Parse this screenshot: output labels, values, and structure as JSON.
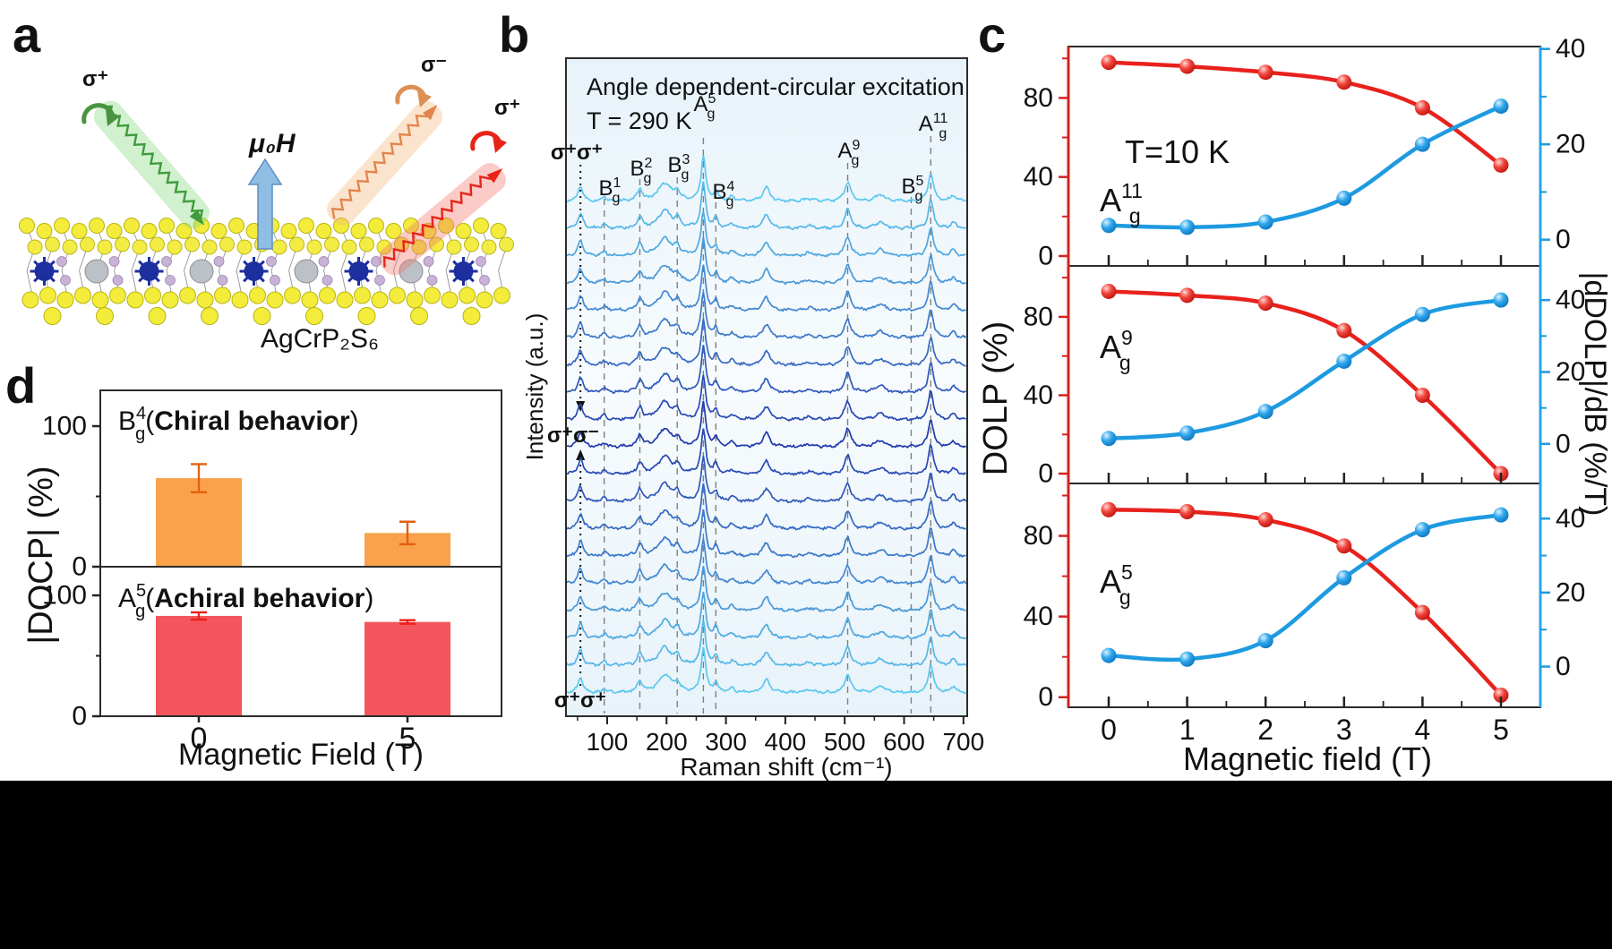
{
  "figure": {
    "panel_letters": {
      "a": "a",
      "b": "b",
      "c": "c",
      "d": "d"
    }
  },
  "panel_a": {
    "sigma_incident": "σ⁺",
    "sigma_reflected_minus": "σ⁻",
    "sigma_reflected_plus": "σ⁺",
    "field_label": "μ₀H",
    "compound": "AgCrP₂S₆",
    "colors": {
      "incident_beam": "#3f9b3c",
      "reflected_minus_beam": "#e2854e",
      "reflected_plus_beam": "#e8241a",
      "field_arrow": "#8fbde4",
      "sulfur": "#f3ec3b",
      "chromium": "#1d2f9e",
      "silver": "#bcc0c7",
      "phosphorus": "#c9b2d8"
    }
  },
  "panel_c_labels": {
    "temp_label": "T=10 K",
    "xlabel": "Magnetic field (T)",
    "ylabel_left": "DOLP (%)",
    "ylabel_right": "|dDOLP|/dB (%/T)"
  },
  "chart_data": [
    {
      "id": "panel-b-raman",
      "type": "line",
      "title": "Angle dependent-circular excitation",
      "subtitle": "T = 290 K",
      "xlabel": "Raman shift (cm⁻¹)",
      "ylabel": "Intensity (a.u.)",
      "xlim": [
        30,
        705
      ],
      "x_ticks": [
        100,
        200,
        300,
        400,
        500,
        600,
        700
      ],
      "n_traces": 19,
      "polarization_top": "σ⁺σ⁺",
      "polarization_middle": "σ⁺σ⁻",
      "polarization_bottom": "σ⁺σ⁺",
      "dashed_guides": [
        95,
        155,
        218,
        262,
        283,
        505,
        612,
        645
      ],
      "dotted_guide": 55,
      "peaks": [
        {
          "pos": 55,
          "amp": 17,
          "w": 5
        },
        {
          "pos": 95,
          "amp": 5,
          "w": 4
        },
        {
          "pos": 155,
          "amp": 13,
          "w": 5
        },
        {
          "pos": 197,
          "amp": 20,
          "w": 13
        },
        {
          "pos": 218,
          "amp": 9,
          "w": 5
        },
        {
          "pos": 262,
          "amp": 50,
          "w": 4.5
        },
        {
          "pos": 283,
          "amp": 11,
          "w": 4
        },
        {
          "pos": 310,
          "amp": 5,
          "w": 5
        },
        {
          "pos": 368,
          "amp": 15,
          "w": 7
        },
        {
          "pos": 440,
          "amp": 3,
          "w": 8
        },
        {
          "pos": 505,
          "amp": 21,
          "w": 6
        },
        {
          "pos": 560,
          "amp": 7,
          "w": 10
        },
        {
          "pos": 645,
          "amp": 32,
          "w": 5
        },
        {
          "pos": 683,
          "amp": 7,
          "w": 5
        }
      ],
      "mode_labels": {
        "m1": {
          "base": "B",
          "sub": "g",
          "sup": "1"
        },
        "m2": {
          "base": "B",
          "sub": "g",
          "sup": "2"
        },
        "m3": {
          "base": "B",
          "sub": "g",
          "sup": "3"
        },
        "m4": {
          "base": "A",
          "sub": "g",
          "sup": "5"
        },
        "m5": {
          "base": "B",
          "sub": "g",
          "sup": "4"
        },
        "m6": {
          "base": "A",
          "sub": "g",
          "sup": "9"
        },
        "m7": {
          "base": "B",
          "sub": "g",
          "sup": "5"
        },
        "m8": {
          "base": "A",
          "sub": "g",
          "sup": "11"
        }
      }
    },
    {
      "id": "panel-c-top",
      "type": "line",
      "mode": {
        "base": "A",
        "sub": "g",
        "sup": "11"
      },
      "annotation": "T=10 K",
      "x": [
        0,
        1,
        2,
        3,
        4,
        5
      ],
      "series": [
        {
          "name": "DOLP",
          "axis": "left",
          "color": "#e8211d",
          "values": [
            98,
            96,
            93,
            88,
            75,
            46
          ]
        },
        {
          "name": "|dDOLP|/dB",
          "axis": "right",
          "color": "#1e9ae0",
          "values": [
            3,
            2.6,
            3.7,
            8.7,
            20,
            28
          ]
        }
      ],
      "left_ticks": [
        0,
        40,
        80
      ],
      "right_ticks": [
        0,
        20,
        40
      ],
      "left_ylim": [
        -5,
        106
      ],
      "right_ylim": [
        -5.5,
        40.5
      ]
    },
    {
      "id": "panel-c-middle",
      "type": "line",
      "mode": {
        "base": "A",
        "sub": "g",
        "sup": "9"
      },
      "x": [
        0,
        1,
        2,
        3,
        4,
        5
      ],
      "series": [
        {
          "name": "DOLP",
          "axis": "left",
          "color": "#e8211d",
          "values": [
            93,
            91,
            87,
            73,
            40,
            0
          ]
        },
        {
          "name": "|dDOLP|/dB",
          "axis": "right",
          "color": "#1e9ae0",
          "values": [
            1.5,
            3,
            9,
            23,
            36,
            40
          ]
        }
      ],
      "left_ticks": [
        0,
        40,
        80
      ],
      "right_ticks": [
        0,
        20,
        40
      ],
      "left_ylim": [
        -5,
        106
      ],
      "right_ylim": [
        -11,
        49.5
      ]
    },
    {
      "id": "panel-c-bottom",
      "type": "line",
      "mode": {
        "base": "A",
        "sub": "g",
        "sup": "5"
      },
      "x": [
        0,
        1,
        2,
        3,
        4,
        5
      ],
      "series": [
        {
          "name": "DOLP",
          "axis": "left",
          "color": "#e8211d",
          "values": [
            93,
            92,
            88,
            75,
            42,
            1
          ]
        },
        {
          "name": "|dDOLP|/dB",
          "axis": "right",
          "color": "#1e9ae0",
          "values": [
            3,
            2,
            7,
            24,
            37,
            41
          ]
        }
      ],
      "left_ticks": [
        0,
        40,
        80
      ],
      "right_ticks": [
        0,
        20,
        40
      ],
      "left_ylim": [
        -5,
        106
      ],
      "right_ylim": [
        -11,
        49.5
      ]
    },
    {
      "id": "panel-d-docp",
      "type": "bar",
      "categories": [
        "0",
        "5"
      ],
      "xlabel": "Magnetic Field (T)",
      "ylabel": "|DOCP| (%)",
      "subpanels": [
        {
          "mode": {
            "base": "B",
            "sub": "g",
            "sup": "4"
          },
          "behavior": {
            "pre": "(",
            "bold": "Chiral behavior",
            "post": ")"
          },
          "color": "#F9A24B",
          "error_color": "#E2600F",
          "values": [
            63,
            24
          ],
          "errors": [
            10,
            8
          ],
          "y_ticks": [
            0,
            100
          ]
        },
        {
          "mode": {
            "base": "A",
            "sub": "g",
            "sup": "5"
          },
          "behavior": {
            "pre": "(",
            "bold": "Achiral behavior",
            "post": ")"
          },
          "color": "#F4555C",
          "error_color": "#E8211D",
          "values": [
            83,
            78
          ],
          "errors": [
            3,
            1.5
          ],
          "y_ticks": [
            0,
            100
          ]
        }
      ]
    }
  ]
}
